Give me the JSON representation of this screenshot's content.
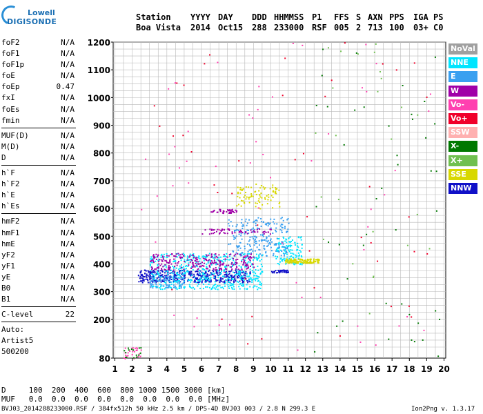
{
  "logo": {
    "line1": "Lowell",
    "line2": "DIGISONDE"
  },
  "header": {
    "cols": [
      {
        "top": "Station",
        "bottom": "Boa Vista"
      },
      {
        "top": "YYYY",
        "bottom": "2014"
      },
      {
        "top": "DAY",
        "bottom": "Oct15"
      },
      {
        "top": "DDD",
        "bottom": "288"
      },
      {
        "top": "HHMMSS",
        "bottom": "233000"
      },
      {
        "top": "P1",
        "bottom": "RSF"
      },
      {
        "top": "FFS",
        "bottom": "005"
      },
      {
        "top": "S",
        "bottom": "2"
      },
      {
        "top": "AXN",
        "bottom": "713"
      },
      {
        "top": "PPS",
        "bottom": "100"
      },
      {
        "top": "IGA",
        "bottom": "03+"
      },
      {
        "top": "PS",
        "bottom": "C0"
      }
    ]
  },
  "params": [
    [
      {
        "name": "foF2",
        "value": "N/A"
      },
      {
        "name": "foF1",
        "value": "N/A"
      },
      {
        "name": "foF1p",
        "value": "N/A"
      },
      {
        "name": "foE",
        "value": "N/A"
      },
      {
        "name": "foEp",
        "value": "0.47"
      },
      {
        "name": "fxI",
        "value": "N/A"
      },
      {
        "name": "foEs",
        "value": "N/A"
      },
      {
        "name": "fmin",
        "value": "N/A"
      }
    ],
    [
      {
        "name": "MUF(D)",
        "value": "N/A"
      },
      {
        "name": "M(D)",
        "value": "N/A"
      },
      {
        "name": "D",
        "value": "N/A"
      }
    ],
    [
      {
        "name": "h`F",
        "value": "N/A"
      },
      {
        "name": "h`F2",
        "value": "N/A"
      },
      {
        "name": "h`E",
        "value": "N/A"
      },
      {
        "name": "h`Es",
        "value": "N/A"
      }
    ],
    [
      {
        "name": "hmF2",
        "value": "N/A"
      },
      {
        "name": "hmF1",
        "value": "N/A"
      },
      {
        "name": "hmE",
        "value": "N/A"
      },
      {
        "name": "yF2",
        "value": "N/A"
      },
      {
        "name": "yF1",
        "value": "N/A"
      },
      {
        "name": "yE",
        "value": "N/A"
      },
      {
        "name": "B0",
        "value": "N/A"
      },
      {
        "name": "B1",
        "value": "N/A"
      }
    ],
    [
      {
        "name": "C-level",
        "value": "22"
      }
    ]
  ],
  "auto": {
    "label": "Auto:",
    "artist": "Artist5",
    "code": "500200"
  },
  "legend": [
    {
      "label": "NoVal",
      "color": "#a0a0a0"
    },
    {
      "label": "NNE",
      "color": "#00e5ff"
    },
    {
      "label": "E",
      "color": "#3aa0f0"
    },
    {
      "label": "W",
      "color": "#a000a8"
    },
    {
      "label": "Vo-",
      "color": "#ff40b0"
    },
    {
      "label": "Vo+",
      "color": "#f0002a"
    },
    {
      "label": "SSW",
      "color": "#ffb0b0"
    },
    {
      "label": "X-",
      "color": "#007800"
    },
    {
      "label": "X+",
      "color": "#70c050"
    },
    {
      "label": "SSE",
      "color": "#d8d800"
    },
    {
      "label": "NNW",
      "color": "#1010c8"
    }
  ],
  "bottom": {
    "row1": "D     100  200  400  600  800 1000 1500 3000 [km]",
    "row2": "MUF   0.0  0.0  0.0  0.0  0.0  0.0  0.0  0.0 [MHz]"
  },
  "footer": {
    "left": "BVJ03_2014288233000.RSF / 384fx512h 50 kHz 2.5 km / DPS-4D BVJ03 003 / 2.8 N 299.3 E",
    "right": "Ion2Png v. 1.3.17"
  },
  "chart_data": {
    "type": "scatter",
    "xlabel": "",
    "ylabel": "",
    "x_ticks": [
      1,
      2,
      3,
      4,
      5,
      6,
      7,
      8,
      9,
      10,
      11,
      12,
      13,
      14,
      15,
      16,
      17,
      18,
      19,
      20
    ],
    "y_ticks": [
      80,
      100,
      200,
      300,
      400,
      500,
      600,
      700,
      800,
      900,
      1000,
      1100,
      1200
    ],
    "xlim": [
      0.9,
      20.1
    ],
    "ylim": [
      80,
      1200
    ],
    "grid": true,
    "legend_position": "right",
    "series": [
      {
        "name": "NNW",
        "color": "#1010c8",
        "clusters": [
          {
            "x": [
              2.3,
              8.8
            ],
            "y": [
              335,
              380
            ],
            "n": 420
          },
          {
            "x": [
              10,
              11
            ],
            "y": [
              370,
              380
            ],
            "n": 40
          }
        ]
      },
      {
        "name": "NNE",
        "color": "#00e5ff",
        "clusters": [
          {
            "x": [
              3,
              9.5
            ],
            "y": [
              310,
              440
            ],
            "n": 550
          },
          {
            "x": [
              10.2,
              11.8
            ],
            "y": [
              400,
              500
            ],
            "n": 120
          }
        ]
      },
      {
        "name": "E",
        "color": "#3aa0f0",
        "clusters": [
          {
            "x": [
              7.5,
              11
            ],
            "y": [
              430,
              570
            ],
            "n": 220
          },
          {
            "x": [
              3,
              5
            ],
            "y": [
              315,
              360
            ],
            "n": 80
          }
        ]
      },
      {
        "name": "W",
        "color": "#a000a8",
        "clusters": [
          {
            "x": [
              3,
              9
            ],
            "y": [
              380,
              440
            ],
            "n": 260
          },
          {
            "x": [
              6.5,
              8
            ],
            "y": [
              585,
              600
            ],
            "n": 40
          },
          {
            "x": [
              6,
              10
            ],
            "y": [
              510,
              530
            ],
            "n": 60
          }
        ]
      },
      {
        "name": "SSE",
        "color": "#d8d800",
        "clusters": [
          {
            "x": [
              10.8,
              12.8
            ],
            "y": [
              405,
              420
            ],
            "n": 120
          },
          {
            "x": [
              8,
              10.5
            ],
            "y": [
              600,
              690
            ],
            "n": 90
          }
        ]
      },
      {
        "name": "Vo-",
        "color": "#ff40b0",
        "clusters": [
          {
            "x": [
              2.5,
              19.5
            ],
            "y": [
              80,
              1200
            ],
            "n": 60
          },
          {
            "x": [
              1.5,
              2.5
            ],
            "y": [
              80,
              100
            ],
            "n": 25
          }
        ]
      },
      {
        "name": "Vo+",
        "color": "#f0002a",
        "clusters": [
          {
            "x": [
              3,
              19.8
            ],
            "y": [
              80,
              1200
            ],
            "n": 45
          }
        ]
      },
      {
        "name": "X-",
        "color": "#007800",
        "clusters": [
          {
            "x": [
              12,
              19.8
            ],
            "y": [
              80,
              1200
            ],
            "n": 45
          },
          {
            "x": [
              1.5,
              2.5
            ],
            "y": [
              80,
              100
            ],
            "n": 15
          }
        ]
      },
      {
        "name": "X+",
        "color": "#70c050",
        "clusters": [
          {
            "x": [
              12,
              19.8
            ],
            "y": [
              80,
              1200
            ],
            "n": 25
          }
        ]
      }
    ]
  }
}
